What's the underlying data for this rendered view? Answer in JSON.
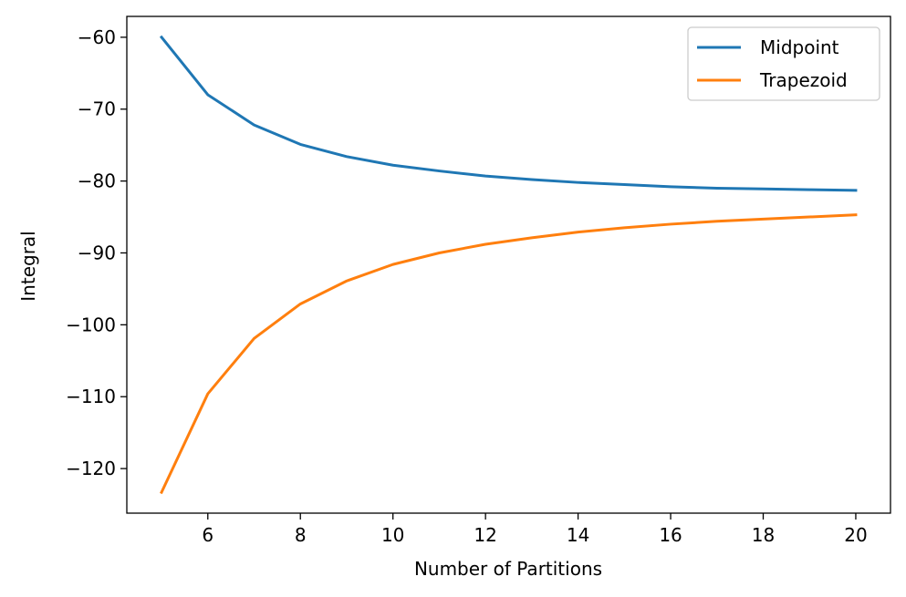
{
  "chart_data": {
    "type": "line",
    "title": "",
    "xlabel": "Number of Partitions",
    "ylabel": "Integral",
    "xlim": [
      4.25,
      20.75
    ],
    "ylim": [
      -126.2,
      -57.1
    ],
    "x_ticks": [
      6,
      8,
      10,
      12,
      14,
      16,
      18,
      20
    ],
    "y_ticks": [
      -60,
      -70,
      -80,
      -90,
      -100,
      -110,
      -120
    ],
    "x_tick_labels": [
      "6",
      "8",
      "10",
      "12",
      "14",
      "16",
      "18",
      "20"
    ],
    "y_tick_labels": [
      "−60",
      "−70",
      "−80",
      "−90",
      "−100",
      "−110",
      "−120"
    ],
    "grid": false,
    "legend_position": "top-right",
    "x": [
      5,
      6,
      7,
      8,
      9,
      10,
      11,
      12,
      13,
      14,
      15,
      16,
      17,
      18,
      19,
      20
    ],
    "series": [
      {
        "name": "Midpoint",
        "color": "#1f77b4",
        "values": [
          -60.0,
          -68.0,
          -72.2,
          -74.9,
          -76.6,
          -77.8,
          -78.6,
          -79.3,
          -79.8,
          -80.2,
          -80.5,
          -80.8,
          -81.0,
          -81.1,
          -81.2,
          -81.3
        ]
      },
      {
        "name": "Trapezoid",
        "color": "#ff7f0e",
        "values": [
          -123.3,
          -109.6,
          -101.9,
          -97.1,
          -93.9,
          -91.6,
          -90.0,
          -88.8,
          -87.9,
          -87.1,
          -86.5,
          -86.0,
          -85.6,
          -85.3,
          -85.0,
          -84.7
        ]
      }
    ]
  }
}
